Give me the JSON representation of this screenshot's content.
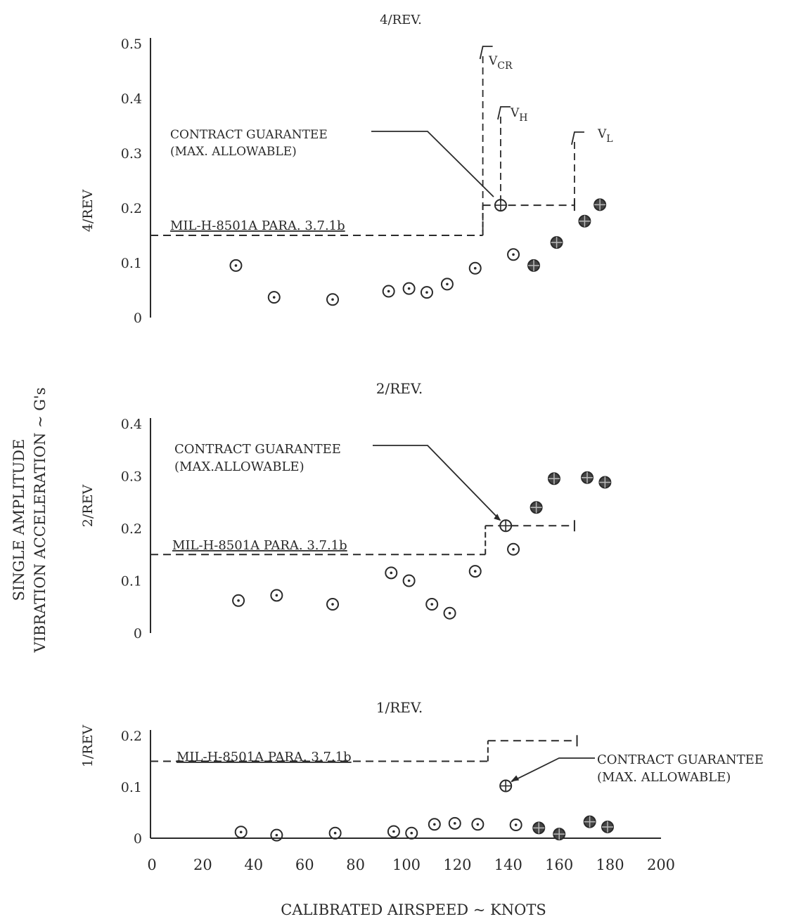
{
  "figure": {
    "shared_ylabel_1": "SINGLE AMPLITUDE",
    "shared_ylabel_2": "VIBRATION ACCELERATION ~ G's",
    "xlabel": "CALIBRATED AIRSPEED ~ KNOTS",
    "x_ticks": [
      "0",
      "20",
      "40",
      "60",
      "80",
      "100",
      "120",
      "140",
      "160",
      "180",
      "200"
    ],
    "ink_color": "#2a2a2a"
  },
  "chart_data": [
    {
      "type": "scatter",
      "title": "4/REV.",
      "ylabel": "4/REV",
      "xlim": [
        0,
        200
      ],
      "ylim": [
        0,
        0.5
      ],
      "y_ticks": [
        {
          "v": 0,
          "label": "0"
        },
        {
          "v": 0.1,
          "label": "0.1"
        },
        {
          "v": 0.2,
          "label": "0.2"
        },
        {
          "v": 0.3,
          "label": "0.3"
        },
        {
          "v": 0.4,
          "label": "0.4"
        },
        {
          "v": 0.5,
          "label": "0.5"
        }
      ],
      "series": [
        {
          "kind": "open",
          "points": [
            [
              33,
              0.095
            ],
            [
              48,
              0.037
            ],
            [
              71,
              0.033
            ],
            [
              93,
              0.048
            ],
            [
              101,
              0.053
            ],
            [
              108,
              0.046
            ],
            [
              116,
              0.061
            ],
            [
              127,
              0.09
            ],
            [
              142,
              0.115
            ]
          ]
        },
        {
          "kind": "filled",
          "points": [
            [
              150,
              0.095
            ],
            [
              159,
              0.137
            ],
            [
              170,
              0.176
            ],
            [
              176,
              0.206
            ]
          ]
        },
        {
          "kind": "guarantee",
          "points": [
            [
              137,
              0.205
            ]
          ]
        }
      ],
      "mil_spec": {
        "label": "MIL-H-8501A PARA. 3.7.1b",
        "value": 0.15,
        "to_x": 130
      },
      "guarantee_line": {
        "value": 0.205,
        "from_x": 130,
        "to_x": 166
      },
      "annotations": {
        "contract_1": "CONTRACT GUARANTEE",
        "contract_2": "(MAX. ALLOWABLE)",
        "vcr": "V",
        "vcr_sub": "CR",
        "vh": "V",
        "vh_sub": "H",
        "vl": "V",
        "vl_sub": "L",
        "vcr_x": 130,
        "vh_x": 137,
        "vl_x": 166
      }
    },
    {
      "type": "scatter",
      "title": "2/REV.",
      "ylabel": "2/REV",
      "xlim": [
        0,
        200
      ],
      "ylim": [
        0,
        0.4
      ],
      "y_ticks": [
        {
          "v": 0,
          "label": "0"
        },
        {
          "v": 0.1,
          "label": "0.1"
        },
        {
          "v": 0.2,
          "label": "0.2"
        },
        {
          "v": 0.3,
          "label": "0.3"
        },
        {
          "v": 0.4,
          "label": "0.4"
        }
      ],
      "series": [
        {
          "kind": "open",
          "points": [
            [
              34,
              0.062
            ],
            [
              49,
              0.072
            ],
            [
              71,
              0.055
            ],
            [
              94,
              0.115
            ],
            [
              101,
              0.1
            ],
            [
              110,
              0.055
            ],
            [
              117,
              0.038
            ],
            [
              127,
              0.118
            ],
            [
              142,
              0.16
            ]
          ]
        },
        {
          "kind": "filled",
          "points": [
            [
              151,
              0.24
            ],
            [
              158,
              0.295
            ],
            [
              171,
              0.297
            ],
            [
              178,
              0.288
            ]
          ]
        },
        {
          "kind": "guarantee",
          "points": [
            [
              139,
              0.205
            ]
          ]
        }
      ],
      "mil_spec": {
        "label": "MIL-H-8501A PARA. 3.7.1b",
        "value": 0.15,
        "to_x": 131
      },
      "guarantee_line": {
        "value": 0.205,
        "from_x": 131,
        "to_x": 166
      },
      "annotations": {
        "contract_1": "CONTRACT GUARANTEE",
        "contract_2": "(MAX.ALLOWABLE)"
      }
    },
    {
      "type": "scatter",
      "title": "1/REV.",
      "ylabel": "1/REV",
      "xlim": [
        0,
        200
      ],
      "ylim": [
        0,
        0.2
      ],
      "y_ticks": [
        {
          "v": 0,
          "label": "0"
        },
        {
          "v": 0.1,
          "label": "0.1"
        },
        {
          "v": 0.2,
          "label": "0.2"
        }
      ],
      "series": [
        {
          "kind": "open",
          "points": [
            [
              35,
              0.012
            ],
            [
              49,
              0.006
            ],
            [
              72,
              0.01
            ],
            [
              95,
              0.013
            ],
            [
              102,
              0.01
            ],
            [
              111,
              0.027
            ],
            [
              119,
              0.029
            ],
            [
              128,
              0.027
            ],
            [
              143,
              0.026
            ]
          ]
        },
        {
          "kind": "filled",
          "points": [
            [
              152,
              0.02
            ],
            [
              160,
              0.008
            ],
            [
              172,
              0.032
            ],
            [
              179,
              0.022
            ]
          ]
        },
        {
          "kind": "guarantee",
          "points": [
            [
              139,
              0.102
            ]
          ]
        }
      ],
      "mil_spec": {
        "label": "MIL-H-8501A PARA. 3.7.1b",
        "value": 0.15,
        "to_x": 132
      },
      "guarantee_line": {
        "value": 0.19,
        "from_x": 132,
        "to_x": 167
      },
      "annotations": {
        "contract_1": "CONTRACT GUARANTEE",
        "contract_2": "(MAX. ALLOWABLE)"
      }
    }
  ]
}
